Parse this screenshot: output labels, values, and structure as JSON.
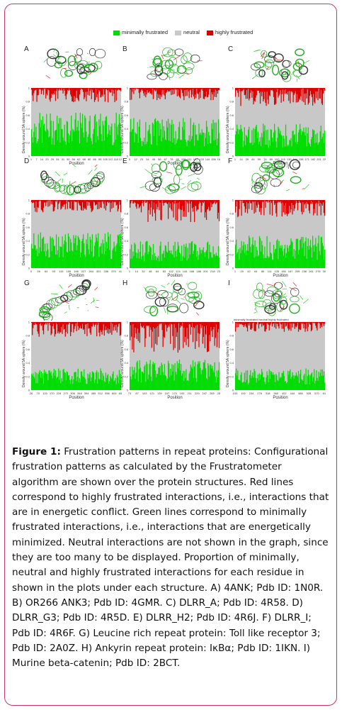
{
  "figure": {
    "legend": {
      "items": [
        {
          "label": "minimally frustrated",
          "color": "#00dd00"
        },
        {
          "label": "neutral",
          "color": "#c8c8c8"
        },
        {
          "label": "highly frustrated",
          "color": "#dd0000"
        }
      ]
    },
    "axis_ylabel": "Density around 5A sphere (%)",
    "axis_xlabel": "Position",
    "panels": [
      {
        "letter": "A",
        "ticks": [
          "1",
          "7",
          "14",
          "23",
          "29",
          "34",
          "41",
          "50",
          "56",
          "62",
          "68",
          "80",
          "86",
          "95",
          "105",
          "112",
          "118",
          "127"
        ]
      },
      {
        "letter": "B",
        "ticks": [
          "0",
          "12",
          "23",
          "34",
          "45",
          "56",
          "67",
          "78",
          "89",
          "100",
          "111",
          "122",
          "133",
          "144",
          "156",
          "168"
        ]
      },
      {
        "letter": "C",
        "ticks": [
          "1",
          "14",
          "29",
          "44",
          "59",
          "74",
          "89",
          "100",
          "115",
          "130",
          "144",
          "158",
          "171",
          "182",
          "201",
          "220"
        ]
      },
      {
        "letter": "D",
        "ticks": [
          "0",
          "26",
          "64",
          "93",
          "115",
          "155",
          "196",
          "227",
          "264",
          "301",
          "336",
          "375",
          "412"
        ]
      },
      {
        "letter": "E",
        "ticks": [
          "1",
          "14",
          "32",
          "48",
          "64",
          "83",
          "102",
          "124",
          "144",
          "166",
          "186",
          "201",
          "218",
          "234"
        ]
      },
      {
        "letter": "F",
        "ticks": [
          "1",
          "20",
          "42",
          "64",
          "86",
          "111",
          "135",
          "156",
          "187",
          "209",
          "238",
          "261",
          "276",
          "307"
        ]
      },
      {
        "letter": "G",
        "ticks": [
          "26",
          "70",
          "120",
          "170",
          "224",
          "272",
          "306",
          "348",
          "394",
          "455",
          "512",
          "556",
          "604",
          "656"
        ]
      },
      {
        "letter": "H",
        "ticks": [
          "73",
          "87",
          "103",
          "121",
          "139",
          "157",
          "175",
          "193",
          "211",
          "229",
          "247",
          "265",
          "283"
        ]
      },
      {
        "letter": "I",
        "ticks": [
          "153",
          "192",
          "234",
          "276",
          "318",
          "360",
          "402",
          "444",
          "486",
          "528",
          "570",
          "612"
        ]
      }
    ],
    "y_ticks": [
      "0",
      "0.2",
      "0.4",
      "0.6",
      "0.8",
      "1"
    ],
    "mini_legend": [
      "minimally frustrated",
      "neutral",
      "highly frustrated"
    ]
  },
  "caption": {
    "label": "Figure 1:",
    "title": " Frustration patterns in repeat proteins:",
    "body": "Configurational frustration patterns as calculated by the Frustratometer algorithm are shown over the protein structures. Red lines correspond to highly frustrated interactions, i.e., interactions that are in energetic conflict. Green lines correspond to minimally frustrated interactions, i.e., interactions that are energetically minimized. Neutral interactions are not shown in the graph, since they are too many to be displayed. Proportion of minimally, neutral and highly frustrated interactions for each residue in shown in the plots under each structure. A) 4ANK; Pdb ID: 1N0R. B) OR266 ANK3; Pdb ID: 4GMR. C) DLRR_A; Pdb ID: 4R58. D) DLRR_G3; Pdb ID: 4R5D. E) DLRR_H2; Pdb ID: 4R6J. F) DLRR_I; Pdb ID: 4R6F. G) Leucine rich repeat protein: Toll like receptor 3; Pdb ID: 2A0Z. H) Ankyrin repeat protein: IκBα; Pdb ID: 1IKN. I) Murine beta-catenin; Pdb ID: 2BCT."
  }
}
